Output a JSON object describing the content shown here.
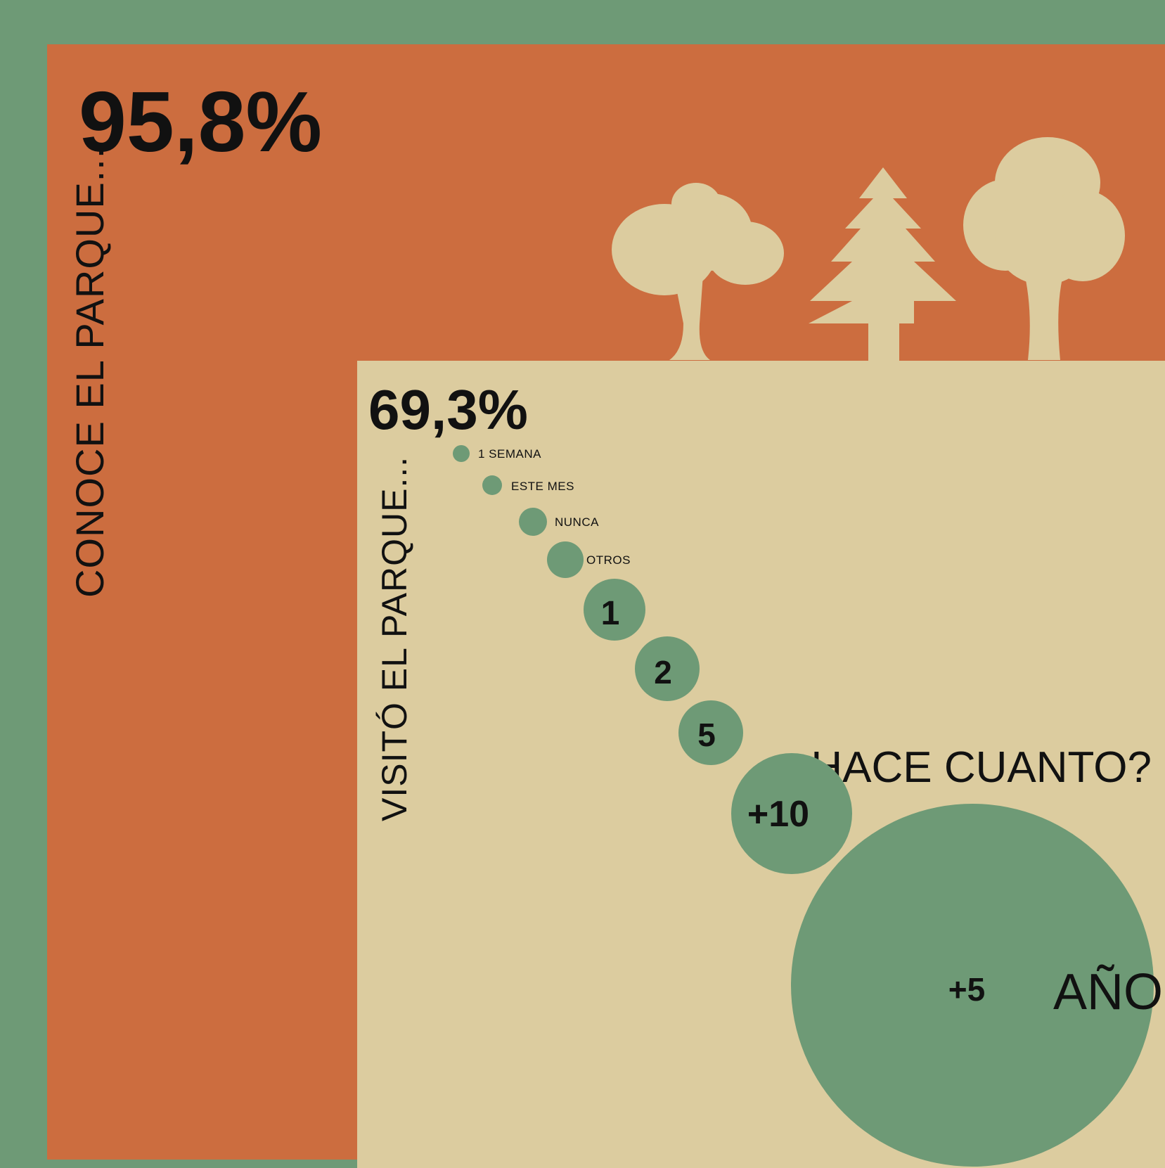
{
  "colors": {
    "frame": "#6e9a76",
    "orange": "#cc6d3f",
    "beige": "#dccc9f",
    "bubble": "#6e9a76",
    "text": "#111111"
  },
  "icons": [
    "mushroom-tree-icon",
    "pine-tree-icon",
    "round-tree-icon"
  ],
  "chart_data": {
    "type": "bubble",
    "known": {
      "value": "95,8%",
      "label": "CONOCE EL PARQUE..."
    },
    "visited": {
      "value": "69,3%",
      "label": "VISITÓ EL PARQUE..."
    },
    "question": "¿HACE CUANTO?",
    "unit": "AÑOS",
    "items": [
      {
        "label": "1 SEMANA",
        "rank": 1
      },
      {
        "label": "ESTE MES",
        "rank": 2
      },
      {
        "label": "NUNCA",
        "rank": 3
      },
      {
        "label": "OTROS",
        "rank": 4
      },
      {
        "label": "1",
        "rank": 5
      },
      {
        "label": "2",
        "rank": 6
      },
      {
        "label": "5",
        "rank": 7
      },
      {
        "label": "+10",
        "rank": 8
      },
      {
        "label": "+5",
        "rank": 9
      }
    ]
  }
}
